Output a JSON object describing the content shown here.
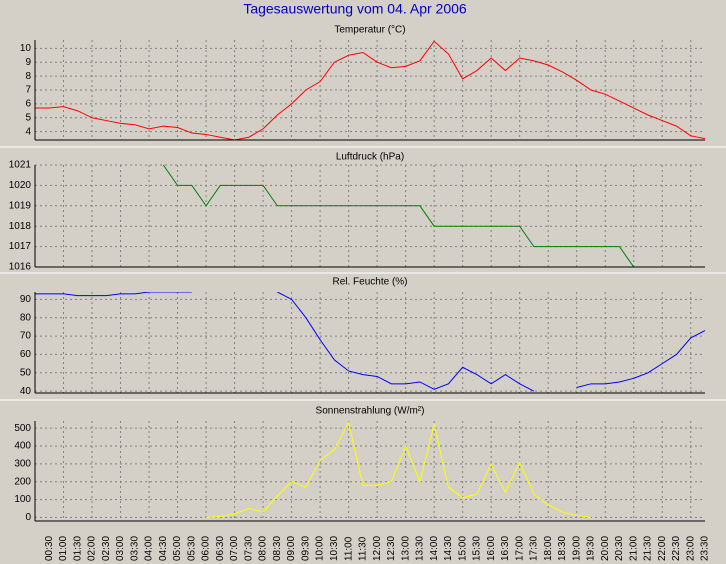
{
  "title": "Tagesauswertung vom 04. Apr 2006",
  "categories": [
    null,
    "00:30",
    "01:00",
    "01:30",
    "02:00",
    "02:30",
    "03:00",
    "03:30",
    "04:00",
    "04:30",
    "05:00",
    "05:30",
    "06:00",
    "06:30",
    "07:00",
    "07:30",
    "08:00",
    "08:30",
    "09:00",
    "09:30",
    "10:00",
    "10:30",
    "11:00",
    "11:30",
    "12:00",
    "12:30",
    "13:00",
    "13:30",
    "14:00",
    "14:30",
    "15:00",
    "15:30",
    "16:00",
    "16:30",
    "17:00",
    "17:30",
    "18:00",
    "18:30",
    "19:00",
    "19:30",
    "20:00",
    "20:30",
    "21:00",
    "21:30",
    "22:00",
    "22:30",
    "23:00",
    "23:30"
  ],
  "chart_data": [
    {
      "type": "line",
      "title": "Temperatur (°C)",
      "grid": true,
      "ylim": [
        3.4,
        10.6
      ],
      "yticks": [
        4,
        5,
        6,
        7,
        8,
        9,
        10
      ],
      "series": [
        {
          "name": "Temperatur",
          "color": "#ff0000",
          "values": [
            5.7,
            5.7,
            5.8,
            5.5,
            5.0,
            4.8,
            4.6,
            4.5,
            4.2,
            4.4,
            4.3,
            3.9,
            3.8,
            3.6,
            3.4,
            3.6,
            4.2,
            5.2,
            6.0,
            7.0,
            7.6,
            9.0,
            9.5,
            9.7,
            9.0,
            8.6,
            8.7,
            9.1,
            10.5,
            9.6,
            7.8,
            8.4,
            9.3,
            8.4,
            9.3,
            9.1,
            8.8,
            8.3,
            7.7,
            7.0,
            6.7,
            6.2,
            5.7,
            5.2,
            4.8,
            4.4,
            3.7,
            3.5
          ]
        }
      ]
    },
    {
      "type": "line",
      "title": "Luftdruck (hPa)",
      "grid": true,
      "ylim": [
        1016,
        1021
      ],
      "yticks": [
        1016,
        1017,
        1018,
        1019,
        1020,
        1021
      ],
      "series": [
        {
          "name": "Luftdruck",
          "color": "#008000",
          "values": [
            null,
            null,
            null,
            null,
            null,
            null,
            null,
            null,
            null,
            1021,
            1020,
            1020,
            1019,
            1020,
            1020,
            1020,
            1020,
            1019,
            1019,
            1019,
            1019,
            1019,
            1019,
            1019,
            1019,
            1019,
            1019,
            1019,
            1018,
            1018,
            1018,
            1018,
            1018,
            1018,
            1018,
            1017,
            1017,
            1017,
            1017,
            1017,
            1017,
            1017,
            1016,
            null,
            null,
            null,
            null,
            null
          ]
        }
      ]
    },
    {
      "type": "line",
      "title": "Rel. Feuchte (%)",
      "grid": true,
      "ylim": [
        39,
        94
      ],
      "yticks": [
        40,
        50,
        60,
        70,
        80,
        90
      ],
      "series": [
        {
          "name": "Rel. Feuchte",
          "color": "#0000ff",
          "values": [
            93,
            93,
            93,
            92,
            92,
            92,
            93,
            93,
            94,
            94,
            94,
            94,
            null,
            null,
            null,
            null,
            null,
            94,
            90,
            80,
            68,
            57,
            51,
            49,
            48,
            44,
            44,
            45,
            41,
            44,
            53,
            49,
            44,
            49,
            44,
            40,
            null,
            null,
            42,
            44,
            44,
            45,
            47,
            50,
            55,
            60,
            69,
            73
          ]
        }
      ]
    },
    {
      "type": "line",
      "title": "Sonnenstrahlung (W/m²)",
      "grid": true,
      "ylim": [
        -20,
        540
      ],
      "yticks": [
        0,
        100,
        200,
        300,
        400,
        500
      ],
      "series": [
        {
          "name": "Sonnenstrahlung",
          "color": "#ffff00",
          "values": [
            null,
            null,
            null,
            null,
            null,
            null,
            null,
            null,
            null,
            null,
            null,
            null,
            0,
            5,
            20,
            50,
            30,
            120,
            200,
            170,
            320,
            380,
            530,
            180,
            180,
            200,
            400,
            200,
            520,
            170,
            110,
            130,
            300,
            140,
            310,
            130,
            70,
            30,
            10,
            0,
            null,
            null,
            null,
            null,
            null,
            null,
            null,
            null
          ]
        }
      ]
    }
  ]
}
